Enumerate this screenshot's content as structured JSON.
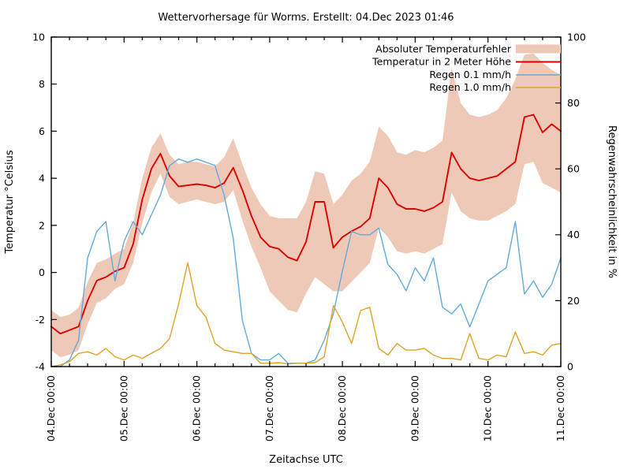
{
  "title": "Wettervorhersage für Worms. Erstellt: 04.Dec 2023 01:46",
  "axes": {
    "x": {
      "label": "Zeitachse UTC",
      "tick_labels": [
        "04.Dec 00:00",
        "05.Dec 00:00",
        "06.Dec 00:00",
        "07.Dec 00:00",
        "08.Dec 00:00",
        "09.Dec 00:00",
        "10.Dec 00:00",
        "11.Dec 00:00"
      ]
    },
    "y_left": {
      "label": "Temperatur °Celsius",
      "tick_labels": [
        "10",
        "8",
        "6",
        "4",
        "2",
        "0",
        "-2",
        "-4"
      ],
      "range": [
        -4,
        10
      ]
    },
    "y_right": {
      "label": "Regenwahrscheinlichkeit in %",
      "tick_labels": [
        "100",
        "80",
        "60",
        "40",
        "20",
        "0"
      ],
      "range": [
        0,
        100
      ]
    }
  },
  "legend": {
    "position": "top-right-inside",
    "items": [
      {
        "label": "Absoluter Temperaturfehler",
        "type": "band",
        "color": "#eec9b8"
      },
      {
        "label": "Temperatur in 2 Meter Höhe",
        "type": "line",
        "color": "#dd0000"
      },
      {
        "label": "Regen 0.1 mm/h",
        "type": "line",
        "color": "#62abdc"
      },
      {
        "label": "Regen 1.0 mm/h",
        "type": "line",
        "color": "#e2a226"
      }
    ]
  },
  "colors": {
    "band": "#eec9b8",
    "temperature": "#dd0000",
    "rain01": "#62abdc",
    "rain10": "#e2a226",
    "border": "#000000"
  },
  "chart_data": {
    "type": "line",
    "title": "Wettervorhersage für Worms. Erstellt: 04.Dec 2023 01:46",
    "xlabel": "Zeitachse UTC",
    "ylabel_left": "Temperatur °Celsius",
    "ylabel_right": "Regenwahrscheinlichkeit in %",
    "x_labels": [
      "04.Dec 00:00",
      "05.Dec 00:00",
      "06.Dec 00:00",
      "07.Dec 00:00",
      "08.Dec 00:00",
      "09.Dec 00:00",
      "10.Dec 00:00",
      "11.Dec 00:00"
    ],
    "x_start_day": 0,
    "x_end_day": 7,
    "time_step_hours": 3,
    "ylim_left": [
      -4,
      10
    ],
    "ylim_right": [
      0,
      100
    ],
    "grid": false,
    "x_minor_tick_hours": 6,
    "series": [
      {
        "name": "Absoluter Temperaturfehler",
        "axis": "left",
        "style": "band",
        "upper": [
          -1.6,
          -1.9,
          -1.8,
          -1.5,
          -0.4,
          0.4,
          0.55,
          0.8,
          1.0,
          2.1,
          4.0,
          5.3,
          5.9,
          5.0,
          4.6,
          4.7,
          4.7,
          4.6,
          4.5,
          4.9,
          5.7,
          4.6,
          3.6,
          2.9,
          2.4,
          2.3,
          2.3,
          2.3,
          3.0,
          4.3,
          4.2,
          2.9,
          3.3,
          3.9,
          4.2,
          4.7,
          6.2,
          5.8,
          5.1,
          5.0,
          5.2,
          5.1,
          5.3,
          5.6,
          8.7,
          7.2,
          6.7,
          6.6,
          6.7,
          6.9,
          7.4,
          8.2,
          9.25,
          9.3,
          8.9,
          8.6,
          8.4
        ],
        "lower": [
          -3.3,
          -3.6,
          -3.5,
          -3.3,
          -2.2,
          -1.3,
          -1.1,
          -0.7,
          -0.5,
          0.4,
          2.1,
          3.4,
          4.2,
          3.2,
          2.9,
          3.0,
          3.1,
          3.0,
          2.9,
          3.0,
          3.5,
          2.2,
          1.1,
          0.2,
          -0.8,
          -1.2,
          -1.6,
          -1.7,
          -0.9,
          -0.2,
          -0.5,
          -0.8,
          -0.8,
          -0.4,
          0.0,
          0.4,
          1.9,
          1.5,
          0.9,
          0.8,
          0.9,
          0.8,
          1.0,
          1.2,
          3.4,
          2.6,
          2.3,
          2.2,
          2.2,
          2.4,
          2.6,
          2.9,
          4.6,
          4.7,
          3.8,
          3.6,
          3.4
        ]
      },
      {
        "name": "Temperatur in 2 Meter Höhe",
        "axis": "left",
        "style": "line",
        "values": [
          -2.3,
          -2.6,
          -2.45,
          -2.3,
          -1.2,
          -0.35,
          -0.2,
          0.05,
          0.2,
          1.2,
          3.1,
          4.4,
          5.05,
          4.1,
          3.65,
          3.7,
          3.75,
          3.7,
          3.6,
          3.8,
          4.45,
          3.5,
          2.4,
          1.5,
          1.1,
          1.0,
          0.65,
          0.5,
          1.3,
          3.0,
          3.0,
          1.05,
          1.5,
          1.75,
          1.95,
          2.3,
          4.0,
          3.6,
          2.9,
          2.7,
          2.7,
          2.6,
          2.75,
          3.0,
          5.1,
          4.4,
          4.0,
          3.9,
          4.0,
          4.1,
          4.4,
          4.7,
          6.6,
          6.7,
          5.95,
          6.3,
          6.0
        ]
      },
      {
        "name": "Regen 0.1 mm/h",
        "axis": "right",
        "style": "line",
        "values": [
          0,
          0,
          2,
          8,
          33,
          41,
          44,
          26,
          38,
          44,
          40,
          46,
          52,
          61,
          63,
          62,
          63,
          62,
          61,
          52,
          39,
          14,
          4,
          2,
          2,
          4,
          1,
          1,
          1,
          2,
          8,
          16,
          29,
          41,
          40,
          40,
          42,
          31,
          28,
          23,
          30,
          26,
          33,
          18,
          16,
          19,
          12,
          19,
          26,
          28,
          30,
          44,
          22,
          26,
          21,
          25,
          33
        ]
      },
      {
        "name": "Regen 1.0 mm/h",
        "axis": "right",
        "style": "line",
        "values": [
          0,
          0.5,
          1.5,
          4,
          4.5,
          3.5,
          5.5,
          3,
          2,
          3.5,
          2.5,
          4,
          5.5,
          8.5,
          19,
          31.5,
          18.5,
          15,
          7,
          5,
          4.5,
          4,
          4,
          1,
          1,
          1.2,
          0.8,
          1,
          1,
          1.2,
          3,
          18.5,
          13.5,
          7,
          17,
          18,
          5.5,
          3.5,
          7,
          5,
          5,
          5.5,
          3.5,
          2.5,
          2.5,
          2,
          10,
          2.5,
          2,
          3.5,
          3,
          10.5,
          4,
          4.5,
          3.5,
          6.5,
          7
        ]
      }
    ]
  }
}
